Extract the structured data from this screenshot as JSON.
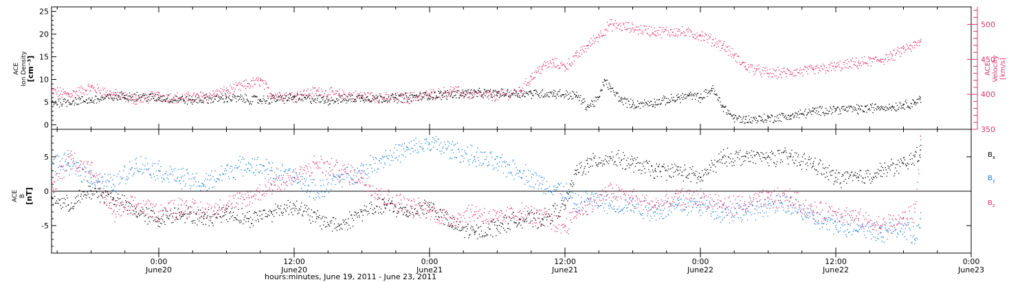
{
  "figure": {
    "xlabel": "hours:minutes, June 19, 2011 - June 23, 2011",
    "x_ticks": [
      {
        "time": "0:00",
        "date": "June20",
        "hours": 0
      },
      {
        "time": "12:00",
        "date": "June20",
        "hours": 12
      },
      {
        "time": "0:00",
        "date": "June21",
        "hours": 24
      },
      {
        "time": "12:00",
        "date": "June21",
        "hours": 36
      },
      {
        "time": "0:00",
        "date": "June22",
        "hours": 48
      },
      {
        "time": "12:00",
        "date": "June22",
        "hours": 60
      },
      {
        "time": "0:00",
        "date": "June23",
        "hours": 72
      }
    ],
    "xlim": [
      "June19 14:30",
      "June23 0:00"
    ]
  },
  "top_panel": {
    "left_label": [
      "ACE",
      "Ion Density",
      "[cm⁻³]"
    ],
    "right_label": [
      "ACE",
      "Velocity",
      "[km/s]"
    ],
    "left_ticks": [
      "0",
      "5",
      "10",
      "15",
      "20",
      "25"
    ],
    "right_ticks": [
      "350",
      "400",
      "450",
      "500"
    ],
    "density_color": "#000000",
    "velocity_color": "#e0306a"
  },
  "bottom_panel": {
    "left_label": [
      "ACE",
      "B",
      "[nT]"
    ],
    "left_ticks": [
      "-5",
      "0",
      "5"
    ],
    "legend": [
      {
        "name": "Bx",
        "base": "B",
        "sub": "x",
        "color": "#000000"
      },
      {
        "name": "By",
        "base": "B",
        "sub": "y",
        "color": "#1a7fd6"
      },
      {
        "name": "Bz",
        "base": "B",
        "sub": "z",
        "color": "#e0306a"
      }
    ]
  },
  "chart_data": [
    {
      "type": "scatter",
      "x_unit": "hours since June 20 0:00",
      "xlim": [
        -9.5,
        72
      ],
      "ylim_left": [
        -1,
        26
      ],
      "ylim_right": [
        350,
        525
      ],
      "series": [
        {
          "name": "Ion Density",
          "axis": "left",
          "color": "#000000",
          "x": [
            -9.5,
            -6,
            -3,
            0,
            3,
            6,
            9,
            12,
            15,
            18,
            21,
            24,
            27,
            30,
            33,
            35,
            37,
            38,
            39,
            39.5,
            40,
            41,
            42,
            44,
            46,
            47,
            48,
            49,
            50,
            51,
            52,
            54,
            56,
            58,
            60,
            62,
            64,
            65,
            66,
            67,
            67.5
          ],
          "y": [
            5,
            5.5,
            6.5,
            6,
            5.5,
            6,
            5.5,
            6,
            5.5,
            6,
            6,
            6.5,
            7,
            7,
            7,
            7,
            6.5,
            4,
            6,
            10,
            8,
            5.5,
            4.5,
            5,
            6,
            6.5,
            6,
            8,
            4,
            1.5,
            1.2,
            1.5,
            2,
            3,
            3.5,
            3.5,
            4,
            4,
            4.5,
            5,
            6
          ]
        },
        {
          "name": "Velocity",
          "axis": "right",
          "color": "#e0306a",
          "x": [
            -9.5,
            -8,
            -6,
            -4,
            -2,
            0,
            2,
            4,
            6,
            8,
            9,
            10,
            12,
            14,
            16,
            18,
            20,
            22,
            24,
            26,
            28,
            30,
            32,
            33,
            34,
            35,
            36,
            37,
            38,
            39,
            40,
            42,
            44,
            46,
            48,
            50,
            51,
            52,
            53,
            54,
            56,
            58,
            60,
            62,
            64,
            65,
            66,
            67,
            67.5
          ],
          "y": [
            405,
            400,
            410,
            400,
            393,
            398,
            395,
            398,
            405,
            415,
            420,
            400,
            398,
            405,
            400,
            398,
            395,
            395,
            400,
            405,
            400,
            398,
            405,
            425,
            440,
            445,
            440,
            455,
            470,
            485,
            500,
            495,
            490,
            490,
            485,
            470,
            455,
            440,
            435,
            430,
            432,
            435,
            440,
            445,
            450,
            455,
            465,
            470,
            475
          ]
        }
      ]
    },
    {
      "type": "scatter",
      "x_unit": "hours since June 20 0:00",
      "xlim": [
        -9.5,
        72
      ],
      "ylim": [
        -9,
        9
      ],
      "series": [
        {
          "name": "Bx",
          "color": "#000000",
          "x": [
            -9.5,
            -8,
            -6,
            -4,
            -2,
            0,
            2,
            4,
            6,
            8,
            10,
            12,
            14,
            16,
            18,
            20,
            22,
            24,
            26,
            28,
            30,
            32,
            34,
            36,
            37,
            38,
            40,
            42,
            44,
            46,
            48,
            50,
            52,
            54,
            56,
            58,
            60,
            62,
            64,
            66,
            67,
            67.5
          ],
          "y": [
            -1,
            -2,
            0,
            -1,
            -3,
            -4,
            -3,
            -4,
            -3,
            -4,
            -3,
            -2,
            -4,
            -5,
            -3,
            -2,
            -3,
            -2,
            -5,
            -6,
            -5,
            -4,
            -4,
            -2,
            3,
            4,
            5,
            4,
            3,
            3,
            2,
            5,
            5,
            5,
            5,
            4,
            2,
            2,
            3,
            4,
            5,
            6
          ]
        },
        {
          "name": "By",
          "color": "#1a7fd6",
          "x": [
            -9.5,
            -8,
            -6,
            -4,
            -2,
            0,
            2,
            4,
            6,
            8,
            10,
            12,
            14,
            16,
            18,
            20,
            22,
            24,
            26,
            28,
            30,
            32,
            34,
            36,
            37,
            38,
            40,
            42,
            44,
            46,
            48,
            50,
            52,
            54,
            56,
            58,
            60,
            62,
            64,
            66,
            67,
            67.5
          ],
          "y": [
            4,
            4,
            2,
            1,
            4,
            3,
            2,
            1,
            3,
            4,
            3,
            2,
            0,
            2,
            3,
            5,
            6,
            7,
            6,
            5,
            4,
            3,
            1,
            0,
            -2,
            -1,
            -2,
            -2,
            -3,
            -2,
            -2,
            -3,
            -3,
            -2,
            -2,
            -4,
            -5,
            -5,
            -6,
            -5,
            -7,
            -4
          ]
        },
        {
          "name": "Bz",
          "color": "#e0306a",
          "x": [
            -9.5,
            -8,
            -6,
            -4,
            -2,
            0,
            2,
            4,
            6,
            8,
            10,
            12,
            14,
            16,
            18,
            20,
            22,
            24,
            26,
            28,
            30,
            32,
            34,
            36,
            37,
            38,
            40,
            42,
            44,
            46,
            48,
            50,
            52,
            54,
            56,
            58,
            60,
            62,
            64,
            66,
            67,
            67.5
          ],
          "y": [
            0,
            5,
            3,
            -3,
            -2,
            -3,
            -2,
            -3,
            -2,
            -1,
            1,
            2,
            4,
            3,
            2,
            -1,
            -2,
            -3,
            -4,
            -3,
            -4,
            -3,
            -4,
            -5,
            -3,
            -2,
            0,
            -1,
            -2,
            -1,
            -1,
            -2,
            -2,
            -1,
            -1,
            -3,
            -3,
            -4,
            -5,
            -4,
            -3,
            8
          ]
        }
      ]
    }
  ]
}
